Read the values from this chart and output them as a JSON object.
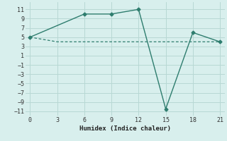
{
  "line1_x": [
    0,
    6,
    9,
    12,
    15,
    18,
    21
  ],
  "line1_y": [
    5,
    10,
    10,
    11,
    -10.5,
    6,
    4
  ],
  "line2_x": [
    0,
    3,
    15,
    21
  ],
  "line2_y": [
    5,
    4,
    4,
    4
  ],
  "line_color": "#2e7d6e",
  "bg_color": "#d8efed",
  "grid_color": "#b8d8d4",
  "xlabel": "Humidex (Indice chaleur)",
  "xlim": [
    -0.5,
    21.5
  ],
  "ylim": [
    -12,
    12.5
  ],
  "xticks": [
    0,
    3,
    6,
    9,
    12,
    15,
    18,
    21
  ],
  "yticks": [
    -11,
    -9,
    -7,
    -5,
    -3,
    -1,
    1,
    3,
    5,
    7,
    9,
    11
  ]
}
